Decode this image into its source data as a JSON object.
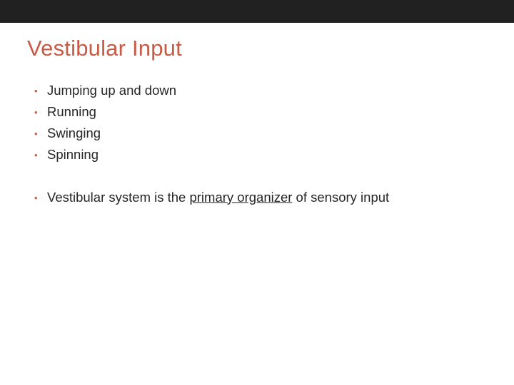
{
  "slide": {
    "title": "Vestibular Input",
    "title_color": "#c75b46",
    "title_fontsize": 31,
    "body_fontsize": 18.5,
    "body_color": "#262626",
    "bullet_color": "#c75b46",
    "topbar_color": "#212121",
    "background_color": "#ffffff",
    "bullets_group1": [
      "Jumping up and down",
      "Running",
      "Swinging",
      "Spinning"
    ],
    "bullets_group2_pre": "Vestibular system is the ",
    "bullets_group2_underlined": "primary organizer",
    "bullets_group2_post": " of sensory input"
  }
}
